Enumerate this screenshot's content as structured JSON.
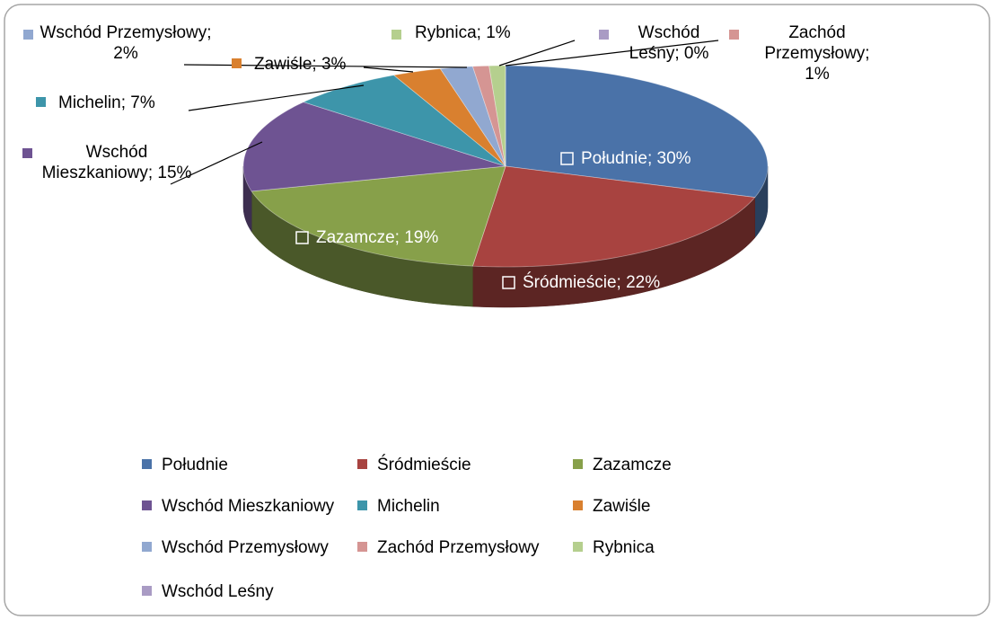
{
  "chart_data": {
    "type": "pie3d",
    "categories": [
      "Południe",
      "Śródmieście",
      "Zazamcze",
      "Wschód Mieszkaniowy",
      "Michelin",
      "Zawiśle",
      "Wschód Przemysłowy",
      "Zachód Przemysłowy",
      "Rybnica",
      "Wschód Leśny"
    ],
    "values": [
      30,
      22,
      19,
      15,
      7,
      3,
      2,
      1,
      1,
      0
    ],
    "value_labels": [
      "Południe; 30%",
      "Śródmieście; 22%",
      "Zazamcze; 19%",
      "Wschód Mieszkaniowy; 15%",
      "Michelin; 7%",
      "Zawiśle; 3%",
      "Wschód Przemysłowy; 2%",
      "Zachód Przemysłowy; 1%",
      "Rybnica; 1%",
      "Wschód Leśny; 0%"
    ],
    "colors": [
      "#4a72a8",
      "#a84340",
      "#87a04a",
      "#6e5392",
      "#3d95aa",
      "#d9802f",
      "#91a8d0",
      "#d59593",
      "#b5cf8e",
      "#a99bc4"
    ],
    "legend": "bottom"
  }
}
